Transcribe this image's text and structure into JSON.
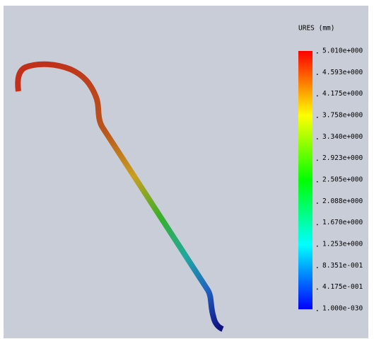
{
  "legend": {
    "title": "URES (mm)",
    "labels": [
      "5.010e+000",
      "4.593e+000",
      "4.175e+000",
      "3.758e+000",
      "3.340e+000",
      "2.923e+000",
      "2.505e+000",
      "2.088e+000",
      "1.670e+000",
      "1.253e+000",
      "8.351e-001",
      "4.175e-001",
      "1.000e-030"
    ]
  }
}
